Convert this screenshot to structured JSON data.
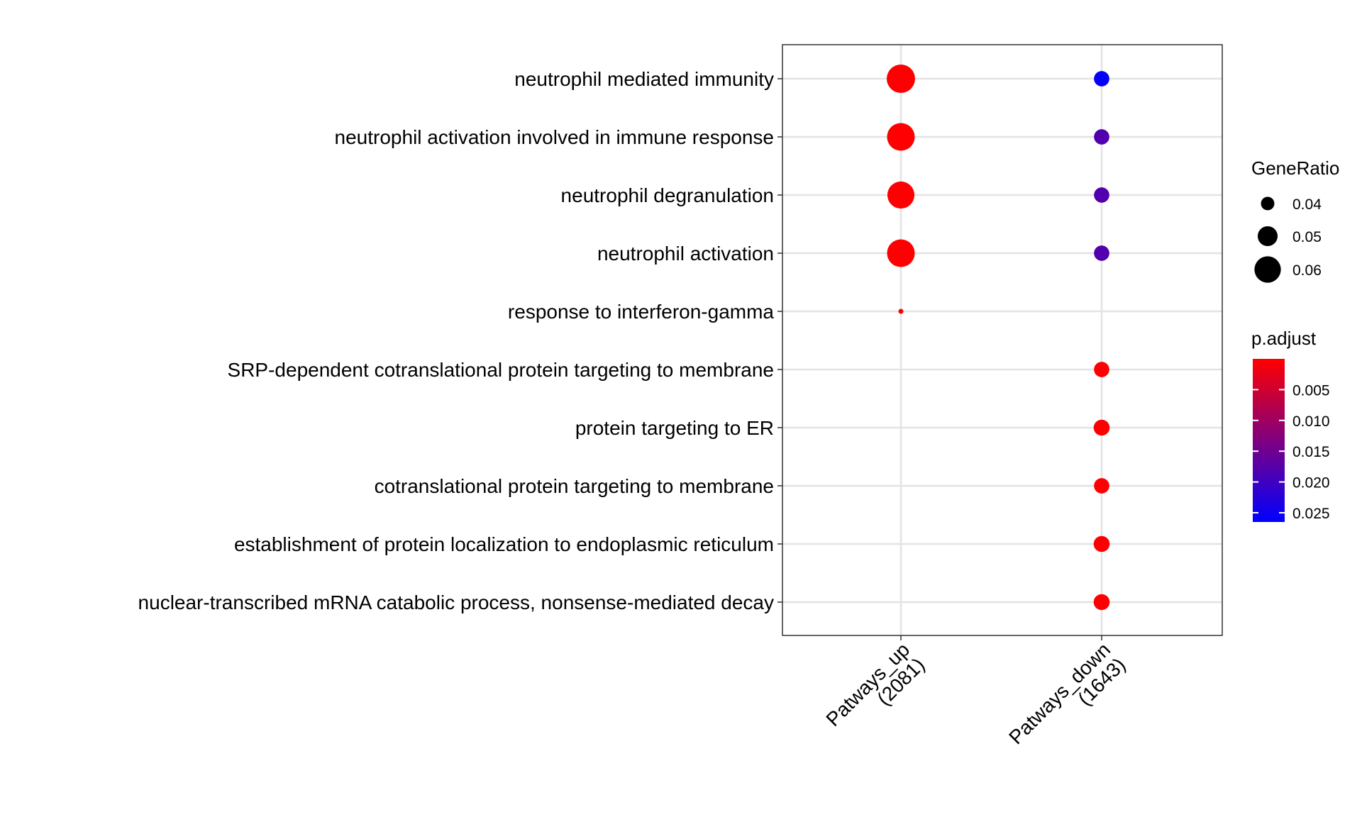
{
  "chart_data": {
    "type": "scatter",
    "title": "",
    "xlabel": "",
    "ylabel": "",
    "x_categories": [
      {
        "line1": "Patways_up",
        "line2": "(2081)"
      },
      {
        "line1": "Patways_down",
        "line2": "(1643)"
      }
    ],
    "y_categories": [
      "neutrophil mediated immunity",
      "neutrophil activation involved in immune response",
      "neutrophil degranulation",
      "neutrophil activation",
      "response to interferon-gamma",
      "SRP-dependent cotranslational protein targeting to membrane",
      "protein targeting to ER",
      "cotranslational protein targeting to membrane",
      "establishment of protein localization to endoplasmic reticulum",
      "nuclear-transcribed mRNA catabolic process, nonsense-mediated decay"
    ],
    "points": [
      {
        "x": "Patways_up",
        "y": "neutrophil mediated immunity",
        "gene_ratio": 0.063,
        "p_adjust": 0.0001
      },
      {
        "x": "Patways_up",
        "y": "neutrophil activation involved in immune response",
        "gene_ratio": 0.062,
        "p_adjust": 0.0001
      },
      {
        "x": "Patways_up",
        "y": "neutrophil degranulation",
        "gene_ratio": 0.061,
        "p_adjust": 0.0001
      },
      {
        "x": "Patways_up",
        "y": "neutrophil activation",
        "gene_ratio": 0.062,
        "p_adjust": 0.0001
      },
      {
        "x": "Patways_up",
        "y": "response to interferon-gamma",
        "gene_ratio": 0.027,
        "p_adjust": 0.0003
      },
      {
        "x": "Patways_down",
        "y": "neutrophil mediated immunity",
        "gene_ratio": 0.043,
        "p_adjust": 0.026
      },
      {
        "x": "Patways_down",
        "y": "neutrophil activation involved in immune response",
        "gene_ratio": 0.043,
        "p_adjust": 0.018
      },
      {
        "x": "Patways_down",
        "y": "neutrophil degranulation",
        "gene_ratio": 0.043,
        "p_adjust": 0.018
      },
      {
        "x": "Patways_down",
        "y": "neutrophil activation",
        "gene_ratio": 0.043,
        "p_adjust": 0.018
      },
      {
        "x": "Patways_down",
        "y": "SRP-dependent cotranslational protein targeting to membrane",
        "gene_ratio": 0.043,
        "p_adjust": 0.0001
      },
      {
        "x": "Patways_down",
        "y": "protein targeting to ER",
        "gene_ratio": 0.044,
        "p_adjust": 0.0001
      },
      {
        "x": "Patways_down",
        "y": "cotranslational protein targeting to membrane",
        "gene_ratio": 0.043,
        "p_adjust": 0.0001
      },
      {
        "x": "Patways_down",
        "y": "establishment of protein localization to endoplasmic reticulum",
        "gene_ratio": 0.044,
        "p_adjust": 0.0001
      },
      {
        "x": "Patways_down",
        "y": "nuclear-transcribed mRNA catabolic process, nonsense-mediated decay",
        "gene_ratio": 0.044,
        "p_adjust": 0.0001
      }
    ],
    "size_legend": {
      "title": "GeneRatio",
      "items": [
        {
          "label": "0.04",
          "value": 0.04
        },
        {
          "label": "0.05",
          "value": 0.05
        },
        {
          "label": "0.06",
          "value": 0.06
        }
      ]
    },
    "color_legend": {
      "title": "p.adjust",
      "min": 0.0,
      "max": 0.0265,
      "low_color": "#ff0000",
      "high_color": "#0000ff",
      "ticks": [
        {
          "label": "0.005",
          "value": 0.005
        },
        {
          "label": "0.010",
          "value": 0.01
        },
        {
          "label": "0.015",
          "value": 0.015
        },
        {
          "label": "0.020",
          "value": 0.02
        },
        {
          "label": "0.025",
          "value": 0.025
        }
      ]
    },
    "grid": true,
    "legend_position": "right"
  }
}
